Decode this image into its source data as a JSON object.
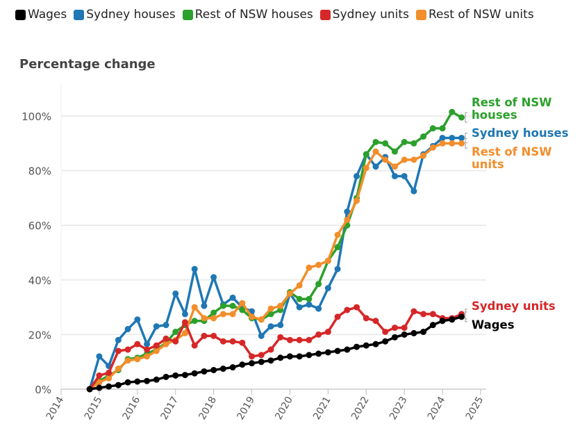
{
  "chart_data": {
    "type": "line",
    "title": "",
    "ylabel": "Percentage change",
    "xlabel": "",
    "ylim": [
      0,
      110
    ],
    "xlim": [
      2014,
      2025
    ],
    "yticks": [
      "0%",
      "20%",
      "40%",
      "60%",
      "80%",
      "100%"
    ],
    "xticks": [
      "2014",
      "2015",
      "2016",
      "2017",
      "2018",
      "2019",
      "2020",
      "2021",
      "2022",
      "2023",
      "2024",
      "2025"
    ],
    "grid": "horizontal",
    "legend": "top",
    "x_start": 2014.75,
    "x_step": 0.25,
    "series": [
      {
        "name": "Wages",
        "label": "Wages",
        "color": "#000000",
        "values": [
          0,
          0.5,
          1,
          1.5,
          2.5,
          2.8,
          3,
          3.5,
          4.5,
          5,
          5.2,
          5.8,
          6.5,
          7,
          7.5,
          8,
          9,
          9.5,
          10,
          10.5,
          11.5,
          12,
          12,
          12.5,
          13,
          13.5,
          14,
          14.5,
          15.5,
          16,
          16.5,
          17.5,
          19,
          20,
          20.5,
          21,
          23.5,
          25,
          25.5,
          26.5
        ]
      },
      {
        "name": "Sydney houses",
        "label": "Sydney houses",
        "color": "#1f77b4",
        "values": [
          0,
          12,
          8.5,
          18,
          22,
          25.5,
          16.5,
          23,
          23.5,
          35,
          27.5,
          44,
          30.5,
          41,
          31,
          33.5,
          30,
          28.5,
          19.5,
          23,
          23.5,
          35,
          30,
          31,
          29.5,
          37,
          44,
          65,
          78,
          86,
          81.5,
          85,
          78,
          78,
          72.5,
          86,
          89,
          92,
          92,
          92
        ]
      },
      {
        "name": "Rest of NSW houses",
        "label": "Rest of NSW houses",
        "color": "#2ca02c",
        "values": [
          0,
          3,
          5,
          7,
          11,
          11.5,
          13,
          14.5,
          17,
          21,
          23.5,
          25,
          25,
          28,
          30.5,
          30.5,
          29,
          26,
          25.5,
          27.5,
          29,
          35.5,
          33,
          33,
          38.5,
          47,
          52,
          60,
          70,
          86,
          90.5,
          90,
          87,
          90.5,
          90,
          92.5,
          95.5,
          95.5,
          101.5,
          99.5
        ]
      },
      {
        "name": "Sydney units",
        "label": "Sydney units",
        "color": "#d62728",
        "values": [
          0,
          5,
          6,
          14,
          14.5,
          16.5,
          14.5,
          16,
          18.5,
          17.5,
          24.5,
          16,
          19.5,
          19.5,
          17.5,
          17.5,
          17,
          12,
          12.5,
          14.5,
          19,
          18,
          18,
          18,
          20,
          21,
          26.5,
          29,
          30,
          26,
          25,
          21,
          22.5,
          22.5,
          28.5,
          27.5,
          27.5,
          26,
          26,
          27.5
        ]
      },
      {
        "name": "Rest of NSW units",
        "label": "Rest of NSW units",
        "color": "#f28e2b",
        "values": [
          0,
          2.5,
          4,
          7.5,
          10.5,
          11,
          12,
          14,
          16.5,
          18,
          20.5,
          30,
          26,
          26,
          27.5,
          27.5,
          31.5,
          26.5,
          25.5,
          29.5,
          30.5,
          35,
          38,
          44.5,
          45.5,
          47,
          56.5,
          62,
          69,
          81,
          87,
          84,
          81.5,
          84,
          84,
          85.5,
          88.5,
          90,
          90,
          90
        ]
      }
    ],
    "end_labels": [
      {
        "series": "Rest of NSW houses",
        "lines": [
          "Rest of NSW",
          "houses"
        ]
      },
      {
        "series": "Sydney houses",
        "lines": [
          "Sydney houses"
        ]
      },
      {
        "series": "Rest of NSW units",
        "lines": [
          "Rest of NSW",
          "units"
        ]
      },
      {
        "series": "Sydney units",
        "lines": [
          "Sydney units"
        ]
      },
      {
        "series": "Wages",
        "lines": [
          "Wages"
        ]
      }
    ]
  }
}
